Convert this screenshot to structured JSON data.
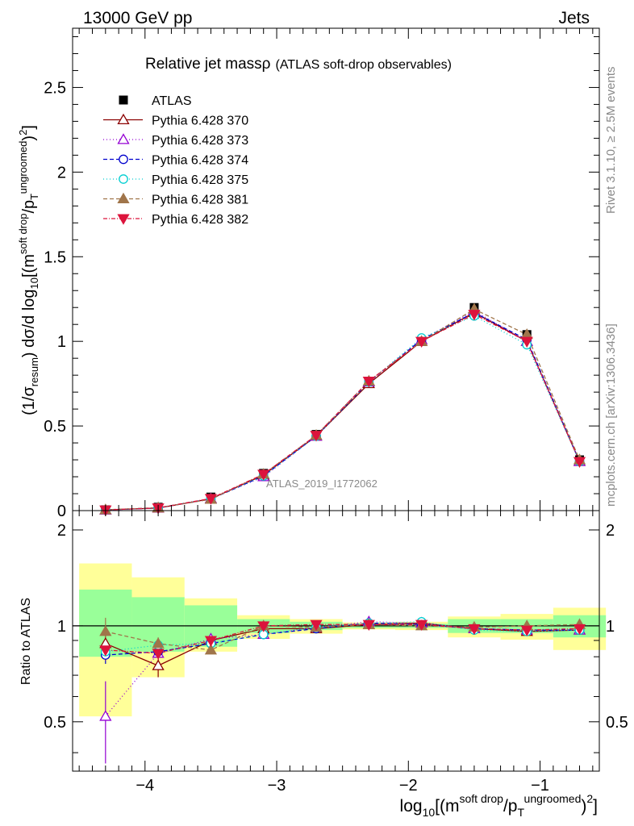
{
  "header": {
    "left": "13000 GeV pp",
    "right": "Jets"
  },
  "title": {
    "main": "Relative jet mass",
    "symbol": "ρ",
    "sub": "(ATLAS soft-drop observables)"
  },
  "side_right": {
    "rivet": "Rivet 3.1.10, ≥ 2.5M events",
    "mcplots": "mcplots.cern.ch [arXiv:1306.3436]"
  },
  "analysis_tag": "ATLAS_2019_I1772062",
  "colors": {
    "data": "#000000",
    "p370": "#8b0000",
    "p373": "#9400d3",
    "p374": "#0000cd",
    "p375": "#00ced1",
    "p381": "#a0754a",
    "p382": "#dc143c",
    "band_inner": "#99ff99",
    "band_outer": "#ffff99"
  },
  "chart_data": [
    {
      "type": "line",
      "panel": "main",
      "title": "Relative jet massρ (ATLAS soft-drop observables)",
      "ylabel_parts": [
        "(1/σ",
        "resum",
        ") dσ/d log",
        "10",
        "[(m",
        "soft drop",
        "/p",
        "T",
        "ungroomed",
        ")",
        "2",
        "]"
      ],
      "xlim": [
        -4.55,
        -0.55
      ],
      "ylim": [
        0,
        2.85
      ],
      "yticks": [
        0,
        0.5,
        1,
        1.5,
        2,
        2.5
      ],
      "ytick_labels": [
        "0",
        "0.5",
        "1",
        "1.5",
        "2",
        "2.5"
      ],
      "grid": false,
      "legend": "top-left",
      "x": [
        -4.3,
        -3.9,
        -3.5,
        -3.1,
        -2.7,
        -2.3,
        -1.9,
        -1.5,
        -1.1,
        -0.7
      ],
      "series": [
        {
          "name": "ATLAS",
          "key": "data",
          "marker": "square",
          "dash": "none",
          "values": [
            0.005,
            0.02,
            0.08,
            0.22,
            0.45,
            0.76,
            1.0,
            1.2,
            1.04,
            0.3
          ]
        },
        {
          "name": "Pythia 6.428 370",
          "key": "p370",
          "marker": "triangle-open",
          "dash": "solid",
          "values": [
            0.004,
            0.015,
            0.07,
            0.21,
            0.44,
            0.75,
            1.0,
            1.17,
            1.0,
            0.29
          ]
        },
        {
          "name": "Pythia 6.428 373",
          "key": "p373",
          "marker": "triangle-open",
          "dash": "1,3",
          "values": [
            0.003,
            0.016,
            0.07,
            0.2,
            0.44,
            0.76,
            1.01,
            1.18,
            1.0,
            0.29
          ]
        },
        {
          "name": "Pythia 6.428 374",
          "key": "p374",
          "marker": "circle-open",
          "dash": "5,3",
          "values": [
            0.004,
            0.016,
            0.068,
            0.205,
            0.44,
            0.76,
            1.01,
            1.17,
            1.01,
            0.29
          ]
        },
        {
          "name": "Pythia 6.428 375",
          "key": "p375",
          "marker": "circle-open",
          "dash": "1,3",
          "values": [
            0.004,
            0.017,
            0.07,
            0.205,
            0.44,
            0.76,
            1.02,
            1.15,
            0.98,
            0.29
          ]
        },
        {
          "name": "Pythia 6.428 381",
          "key": "p381",
          "marker": "triangle",
          "dash": "5,3",
          "values": [
            0.005,
            0.017,
            0.067,
            0.215,
            0.445,
            0.765,
            1.0,
            1.19,
            1.04,
            0.3
          ]
        },
        {
          "name": "Pythia 6.428 382",
          "key": "p382",
          "marker": "triangle-down",
          "dash": "5,2,1,2",
          "values": [
            0.004,
            0.016,
            0.072,
            0.215,
            0.445,
            0.765,
            1.0,
            1.16,
            1.0,
            0.29
          ]
        }
      ]
    },
    {
      "type": "line",
      "panel": "ratio",
      "ylabel": "Ratio to ATLAS",
      "xlabel_parts": [
        "log",
        "10",
        "[(m",
        "soft drop",
        "/p",
        "T",
        "ungroomed",
        ")",
        "2",
        "]"
      ],
      "xlim": [
        -4.55,
        -0.55
      ],
      "ylim": [
        0.35,
        2.3
      ],
      "yticks": [
        0.5,
        1,
        2
      ],
      "ytick_labels": [
        "0.5",
        "1",
        "2"
      ],
      "xticks": [
        -4,
        -3,
        -2,
        -1
      ],
      "xtick_labels": [
        "−4",
        "−3",
        "−2",
        "−1"
      ],
      "bin_edges": [
        -4.5,
        -4.1,
        -3.7,
        -3.3,
        -2.9,
        -2.5,
        -2.1,
        -1.7,
        -1.3,
        -0.9,
        -0.5
      ],
      "band_inner": [
        [
          0.8,
          1.3
        ],
        [
          0.83,
          1.23
        ],
        [
          0.86,
          1.16
        ],
        [
          0.95,
          1.05
        ],
        [
          0.97,
          1.03
        ],
        [
          0.985,
          1.015
        ],
        [
          0.985,
          1.015
        ],
        [
          0.95,
          1.05
        ],
        [
          0.95,
          1.05
        ],
        [
          0.92,
          1.08
        ]
      ],
      "band_outer": [
        [
          0.52,
          1.57
        ],
        [
          0.69,
          1.42
        ],
        [
          0.83,
          1.22
        ],
        [
          0.91,
          1.08
        ],
        [
          0.945,
          1.05
        ],
        [
          0.975,
          1.025
        ],
        [
          0.97,
          1.03
        ],
        [
          0.92,
          1.07
        ],
        [
          0.905,
          1.09
        ],
        [
          0.84,
          1.14
        ]
      ],
      "reference": 1,
      "series": [
        {
          "name": "Pythia 6.428 370",
          "key": "p370",
          "marker": "triangle-open",
          "dash": "solid",
          "values": [
            0.88,
            0.75,
            0.9,
            0.98,
            0.98,
            1.01,
            1.02,
            0.98,
            0.96,
            0.97
          ],
          "err": [
            0.08,
            0.06,
            0.03,
            0.01,
            0,
            0,
            0,
            0,
            0,
            0
          ]
        },
        {
          "name": "Pythia 6.428 373",
          "key": "p373",
          "marker": "triangle-open",
          "dash": "1,3",
          "values": [
            0.52,
            0.82,
            0.91,
            0.94,
            0.99,
            1.03,
            1.02,
            0.98,
            0.97,
            0.97
          ],
          "err": [
            0.15,
            0.05,
            0.03,
            0,
            0,
            0,
            0,
            0,
            0,
            0
          ]
        },
        {
          "name": "Pythia 6.428 374",
          "key": "p374",
          "marker": "circle-open",
          "dash": "5,3",
          "values": [
            0.81,
            0.83,
            0.88,
            0.94,
            0.98,
            1.02,
            1.01,
            0.98,
            0.97,
            0.97
          ],
          "err": [
            0.05,
            0.04,
            0.02,
            0,
            0,
            0,
            0,
            0,
            0,
            0
          ]
        },
        {
          "name": "Pythia 6.428 375",
          "key": "p375",
          "marker": "circle-open",
          "dash": "1,3",
          "values": [
            0.83,
            0.87,
            0.88,
            0.94,
            0.99,
            1.02,
            1.03,
            0.97,
            0.96,
            0.97
          ],
          "err": [
            0.04,
            0.03,
            0.02,
            0,
            0,
            0,
            0,
            0,
            0,
            0
          ]
        },
        {
          "name": "Pythia 6.428 381",
          "key": "p381",
          "marker": "triangle",
          "dash": "5,3",
          "values": [
            0.96,
            0.88,
            0.84,
            1.0,
            0.99,
            1.01,
            1.0,
            0.99,
            1.0,
            1.01
          ],
          "err": [
            0.1,
            0.04,
            0.02,
            0,
            0,
            0,
            0,
            0,
            0,
            0
          ]
        },
        {
          "name": "Pythia 6.428 382",
          "key": "p382",
          "marker": "triangle-down",
          "dash": "5,2,1,2",
          "values": [
            0.84,
            0.82,
            0.9,
            1.0,
            1.01,
            1.01,
            1.01,
            0.98,
            0.97,
            0.98
          ],
          "err": [
            0.06,
            0.04,
            0.02,
            0,
            0,
            0,
            0,
            0,
            0,
            0
          ]
        }
      ]
    }
  ]
}
